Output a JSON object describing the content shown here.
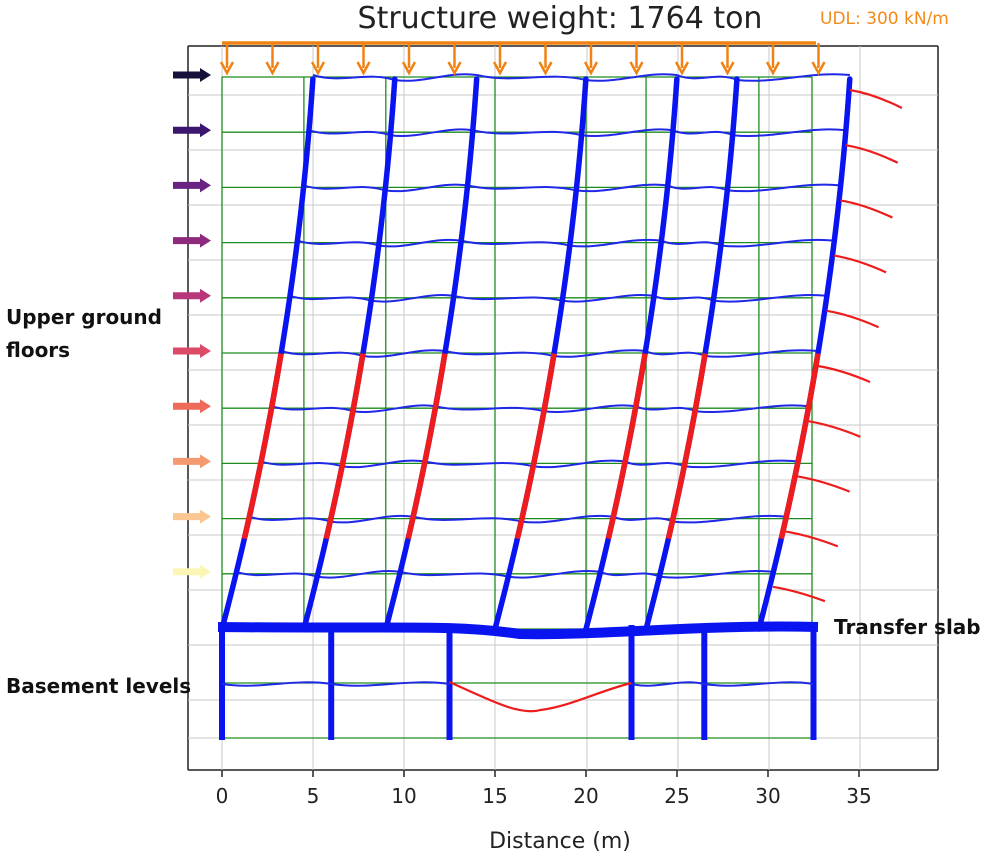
{
  "title": "Structure weight: 1764 ton",
  "udl_label": "UDL: 300 kN/m",
  "labels": {
    "upper_line1": "Upper ground",
    "upper_line2": "floors",
    "transfer": "Transfer slab",
    "basement": "Basement levels"
  },
  "x_axis": {
    "label": "Distance (m)",
    "ticks": [
      0,
      5,
      10,
      15,
      20,
      25,
      30,
      35
    ],
    "range": [
      -1.8,
      39.5
    ]
  },
  "colors": {
    "frame_blue": "#0a14f0",
    "beam_blue": "#2028e8",
    "grid_green": "#1e8c1e",
    "overstress_red": "#ee1c1c",
    "load_orange": "#f08214",
    "lateral_arrows": [
      "#14123a",
      "#3d1670",
      "#6a2280",
      "#8e2a7e",
      "#b8377a",
      "#dc4a68",
      "#f06a5a",
      "#f59a70",
      "#fbc690",
      "#fbf6b6"
    ]
  },
  "structure": {
    "upper_storeys": 10,
    "basement_levels": 2,
    "original_column_x": [
      0,
      4.5,
      9,
      15,
      20,
      23.3,
      29.5
    ],
    "basement_column_x": [
      0,
      6,
      12.5,
      22.5,
      26.5,
      32.5
    ],
    "max_top_drift_m": 5
  }
}
